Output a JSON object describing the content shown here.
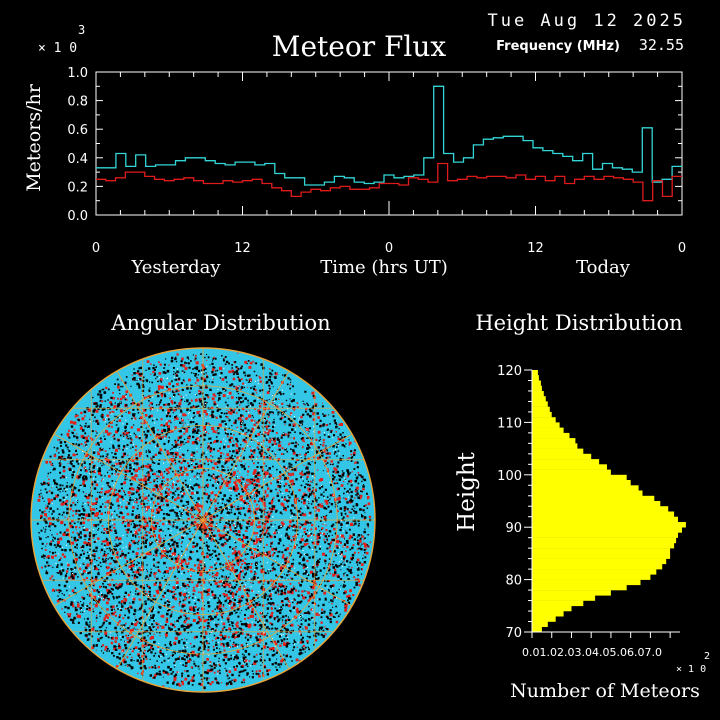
{
  "header": {
    "date": "Tue Aug 12 2025",
    "frequency_label": "Frequency (MHz)",
    "frequency_value": "32.55",
    "multiplier_base": "× 1 0",
    "multiplier_exp": "3"
  },
  "colors": {
    "background": "#000000",
    "axis": "#ffffff",
    "series_cyan": "#33d6d6",
    "series_red": "#e01b1b",
    "histogram": "#ffff00",
    "polar_fill": "#33c6e6",
    "polar_red": "#e0201a",
    "polar_grid": "#e8a43a"
  },
  "chart_data": [
    {
      "type": "line",
      "title": "Meteor Flux",
      "ylabel": "Meteors/hr",
      "xlabel": "Time (hrs UT)",
      "day_labels": [
        "Yesterday",
        "Today"
      ],
      "x_ticks": [
        "0",
        "12",
        "0",
        "12",
        "0"
      ],
      "y_ticks": [
        "0.0",
        "0.2",
        "0.4",
        "0.6",
        "0.8",
        "1.0"
      ],
      "ylim": [
        0,
        1.0
      ],
      "y_scale_note": "×10^3",
      "xlim": [
        0,
        48
      ],
      "series": [
        {
          "color": "cyan",
          "values": [
            0.33,
            0.33,
            0.43,
            0.34,
            0.42,
            0.34,
            0.35,
            0.35,
            0.38,
            0.4,
            0.4,
            0.38,
            0.36,
            0.35,
            0.37,
            0.37,
            0.35,
            0.36,
            0.29,
            0.26,
            0.26,
            0.21,
            0.21,
            0.23,
            0.27,
            0.26,
            0.23,
            0.22,
            0.23,
            0.28,
            0.26,
            0.27,
            0.28,
            0.4,
            0.9,
            0.43,
            0.37,
            0.4,
            0.49,
            0.53,
            0.54,
            0.55,
            0.55,
            0.52,
            0.47,
            0.45,
            0.43,
            0.41,
            0.38,
            0.43,
            0.32,
            0.36,
            0.33,
            0.32,
            0.3,
            0.61,
            0.23,
            0.25,
            0.34
          ]
        },
        {
          "color": "red",
          "values": [
            0.25,
            0.24,
            0.26,
            0.3,
            0.3,
            0.27,
            0.25,
            0.24,
            0.25,
            0.26,
            0.24,
            0.22,
            0.22,
            0.24,
            0.23,
            0.24,
            0.25,
            0.22,
            0.19,
            0.17,
            0.13,
            0.16,
            0.18,
            0.17,
            0.19,
            0.2,
            0.18,
            0.18,
            0.19,
            0.22,
            0.22,
            0.21,
            0.26,
            0.25,
            0.23,
            0.36,
            0.24,
            0.25,
            0.27,
            0.26,
            0.27,
            0.27,
            0.26,
            0.28,
            0.25,
            0.27,
            0.24,
            0.27,
            0.22,
            0.25,
            0.27,
            0.25,
            0.27,
            0.26,
            0.25,
            0.23,
            0.1,
            0.24,
            0.13,
            0.27
          ]
        }
      ]
    },
    {
      "type": "scatter",
      "title": "Angular Distribution",
      "description_points": "polar sky map of meteor positions"
    },
    {
      "type": "bar",
      "orientation": "horizontal",
      "title": "Height Distribution",
      "ylabel": "Height",
      "xlabel": "Number of Meteors",
      "x_tick_text": "0.01.02.03.04.05.06.07.0",
      "x_scale_base": "× 1 0",
      "x_scale_exp": "2",
      "y_ticks": [
        "70",
        "80",
        "90",
        "100",
        "110",
        "120"
      ],
      "ylim": [
        70,
        120
      ],
      "xlim": [
        0,
        7.5
      ],
      "heights": [
        70,
        71,
        72,
        73,
        74,
        75,
        76,
        77,
        78,
        79,
        80,
        81,
        82,
        83,
        84,
        85,
        86,
        87,
        88,
        89,
        90,
        91,
        92,
        93,
        94,
        95,
        96,
        97,
        98,
        99,
        100,
        101,
        102,
        103,
        104,
        105,
        106,
        107,
        108,
        109,
        110,
        111,
        112,
        113,
        114,
        115,
        116,
        117,
        118,
        119
      ],
      "values": [
        0.5,
        0.8,
        1.2,
        1.6,
        2.0,
        2.6,
        3.2,
        4.0,
        4.8,
        5.5,
        6.0,
        6.3,
        6.6,
        6.8,
        7.0,
        7.0,
        7.2,
        7.3,
        7.4,
        7.6,
        7.8,
        7.4,
        7.2,
        6.9,
        6.5,
        6.2,
        5.6,
        5.4,
        5.0,
        4.8,
        4.0,
        3.8,
        3.4,
        3.0,
        2.6,
        2.3,
        2.2,
        1.9,
        1.6,
        1.4,
        1.2,
        1.0,
        0.9,
        0.8,
        0.7,
        0.6,
        0.5,
        0.45,
        0.35,
        0.3
      ]
    }
  ]
}
